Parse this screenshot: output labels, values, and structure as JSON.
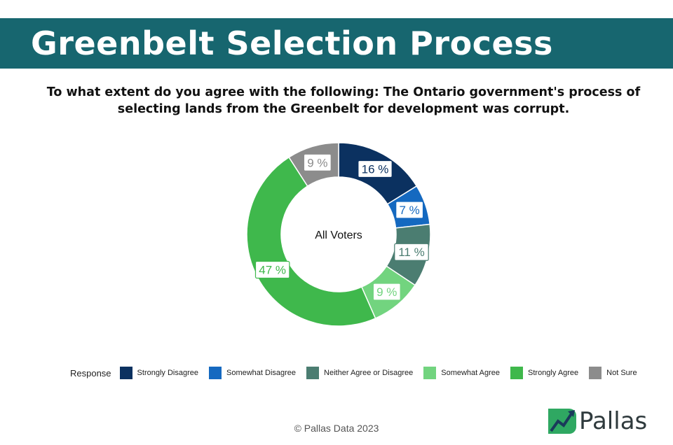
{
  "header": {
    "title": "Greenbelt Selection Process"
  },
  "question": "To what extent do you agree with the following: The Ontario government's process of selecting lands from the Greenbelt for development was corrupt.",
  "chart_data": {
    "type": "pie",
    "variant": "donut",
    "center_label": "All Voters",
    "legend_title": "Response",
    "legend_position": "bottom",
    "start_angle_deg": 0,
    "direction": "clockwise",
    "label_suffix": " %",
    "slices": [
      {
        "label": "Strongly Disagree",
        "value": 16,
        "color": "#0b3160"
      },
      {
        "label": "Somewhat Disagree",
        "value": 7,
        "color": "#1569c0"
      },
      {
        "label": "Neither Agree or Disagree",
        "value": 11,
        "color": "#4b7d71"
      },
      {
        "label": "Somewhat Agree",
        "value": 9,
        "color": "#72d47f"
      },
      {
        "label": "Strongly Agree",
        "value": 47,
        "color": "#3fb84c"
      },
      {
        "label": "Not Sure",
        "value": 9,
        "color": "#8c8c8c"
      }
    ]
  },
  "footer": {
    "copyright": "© Pallas Data 2023",
    "logo_text": "Pallas"
  }
}
